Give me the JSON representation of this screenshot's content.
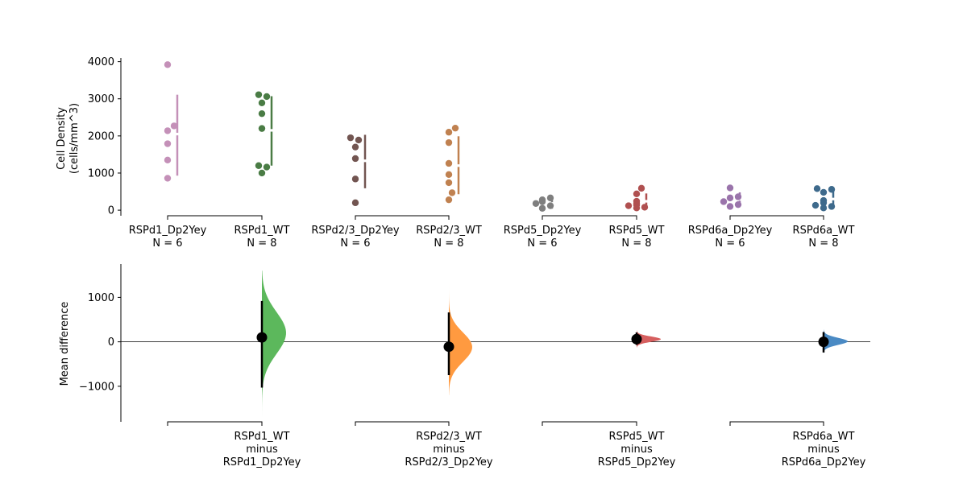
{
  "chart_data": [
    {
      "type": "scatter",
      "ylabel_lines": [
        "Cell Density",
        "(cells/mm^3)"
      ],
      "ylim": [
        -150,
        4100
      ],
      "yticks": [
        0,
        1000,
        2000,
        3000,
        4000
      ],
      "yticklabels": [
        "0",
        "1000",
        "2000",
        "3000",
        "4000"
      ],
      "groups": [
        {
          "name": "RSPd1_Dp2Yey",
          "n_label": "N = 6",
          "color": "#c490b8",
          "values": [
            3920,
            2270,
            2140,
            1790,
            1350,
            860
          ],
          "mean": 2050,
          "gap_lo": 2015,
          "gap_hi": 2085,
          "sd_lo": 930,
          "sd_hi": 3110
        },
        {
          "name": "RSPd1_WT",
          "n_label": "N = 8",
          "color": "#4a7c45",
          "values": [
            3110,
            3060,
            2890,
            2600,
            2200,
            1200,
            1160,
            1000
          ],
          "mean": 2150,
          "gap_lo": 2115,
          "gap_hi": 2185,
          "sd_lo": 1200,
          "sd_hi": 3070
        },
        {
          "name": "RSPd2/3_Dp2Yey",
          "n_label": "N = 6",
          "color": "#725551",
          "values": [
            1950,
            1890,
            1700,
            1390,
            840,
            200
          ],
          "mean": 1330,
          "gap_lo": 1295,
          "gap_hi": 1365,
          "sd_lo": 590,
          "sd_hi": 2030
        },
        {
          "name": "RSPd2/3_WT",
          "n_label": "N = 8",
          "color": "#c08150",
          "values": [
            2210,
            2100,
            1820,
            1260,
            960,
            740,
            470,
            280
          ],
          "mean": 1200,
          "gap_lo": 1165,
          "gap_hi": 1235,
          "sd_lo": 430,
          "sd_hi": 1990
        },
        {
          "name": "RSPd5_Dp2Yey",
          "n_label": "N = 6",
          "color": "#7f7f7f",
          "values": [
            330,
            280,
            230,
            180,
            120,
            50
          ],
          "mean": 180,
          "gap_lo": 145,
          "gap_hi": 215,
          "sd_lo": 40,
          "sd_hi": 320
        },
        {
          "name": "RSPd5_WT",
          "n_label": "N = 8",
          "color": "#b05050",
          "values": [
            590,
            440,
            240,
            190,
            140,
            120,
            80,
            60
          ],
          "mean": 240,
          "gap_lo": 205,
          "gap_hi": 275,
          "sd_lo": 50,
          "sd_hi": 450
        },
        {
          "name": "RSPd6a_Dp2Yey",
          "n_label": "N = 6",
          "color": "#9a74ab",
          "values": [
            600,
            360,
            330,
            230,
            150,
            100
          ],
          "mean": 290,
          "gap_lo": 255,
          "gap_hi": 325,
          "sd_lo": 100,
          "sd_hi": 480
        },
        {
          "name": "RSPd6a_WT",
          "n_label": "N = 8",
          "color": "#3e6a8c",
          "values": [
            580,
            560,
            480,
            260,
            200,
            130,
            100,
            60
          ],
          "mean": 300,
          "gap_lo": 265,
          "gap_hi": 335,
          "sd_lo": 70,
          "sd_hi": 530
        }
      ]
    },
    {
      "type": "area",
      "ylabel": "Mean difference",
      "ylim": [
        -1800,
        1750
      ],
      "yticks": [
        -1000,
        0,
        1000
      ],
      "yticklabels": [
        "−1000",
        "0",
        "1000"
      ],
      "contrasts": [
        {
          "label_lines": [
            "RSPd1_WT",
            "minus",
            "RSPd1_Dp2Yey"
          ],
          "color": "#5cb85c",
          "mean_diff": 100,
          "ci": [
            -1030,
            920
          ],
          "dist_range": [
            -1700,
            1600
          ],
          "dist_peak": 200,
          "dist_sd": 470,
          "max_width": 30
        },
        {
          "label_lines": [
            "RSPd2/3_WT",
            "minus",
            "RSPd2/3_Dp2Yey"
          ],
          "color": "#ff9a40",
          "mean_diff": -110,
          "ci": [
            -750,
            660
          ],
          "dist_range": [
            -1200,
            1300
          ],
          "dist_peak": -120,
          "dist_sd": 330,
          "max_width": 29
        },
        {
          "label_lines": [
            "RSPd5_WT",
            "minus",
            "RSPd5_Dp2Yey"
          ],
          "color": "#d65f5f",
          "mean_diff": 60,
          "ci": [
            -70,
            210
          ],
          "dist_range": [
            -130,
            260
          ],
          "dist_peak": 60,
          "dist_sd": 60,
          "max_width": 30
        },
        {
          "label_lines": [
            "RSPd6a_WT",
            "minus",
            "RSPd6a_Dp2Yey"
          ],
          "color": "#4a8ac4",
          "mean_diff": 0,
          "ci": [
            -240,
            220
          ],
          "dist_range": [
            -260,
            280
          ],
          "dist_peak": 10,
          "dist_sd": 80,
          "max_width": 30
        }
      ]
    }
  ]
}
